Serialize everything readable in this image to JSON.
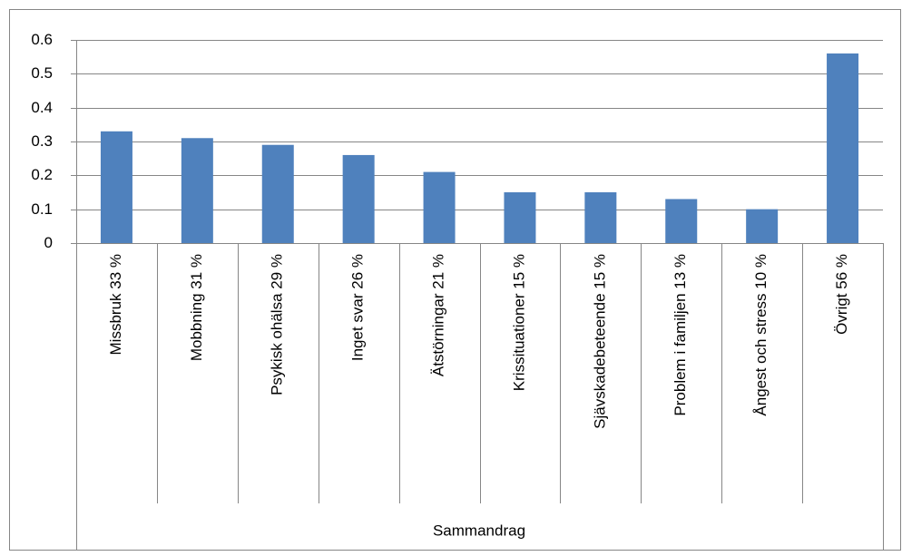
{
  "chart_data": {
    "type": "bar",
    "categories": [
      "Missbruk 33 %",
      "Mobbning 31 %",
      "Psykisk ohälsa 29 %",
      "Inget svar 26 %",
      "Ätstörningar 21 %",
      "Krissituationer 15 %",
      "Sjävskadebeteende 15 %",
      "Problem i familjen 13 %",
      "Ångest och stress 10 %",
      "Övrigt 56 %"
    ],
    "values": [
      0.33,
      0.31,
      0.29,
      0.26,
      0.21,
      0.15,
      0.15,
      0.13,
      0.1,
      0.56
    ],
    "color": "#4f81bd",
    "category_group": "Sammandrag",
    "ylim": [
      0,
      0.6
    ],
    "yticks": [
      0,
      0.1,
      0.2,
      0.3,
      0.4,
      0.5,
      0.6
    ],
    "grid": true
  }
}
